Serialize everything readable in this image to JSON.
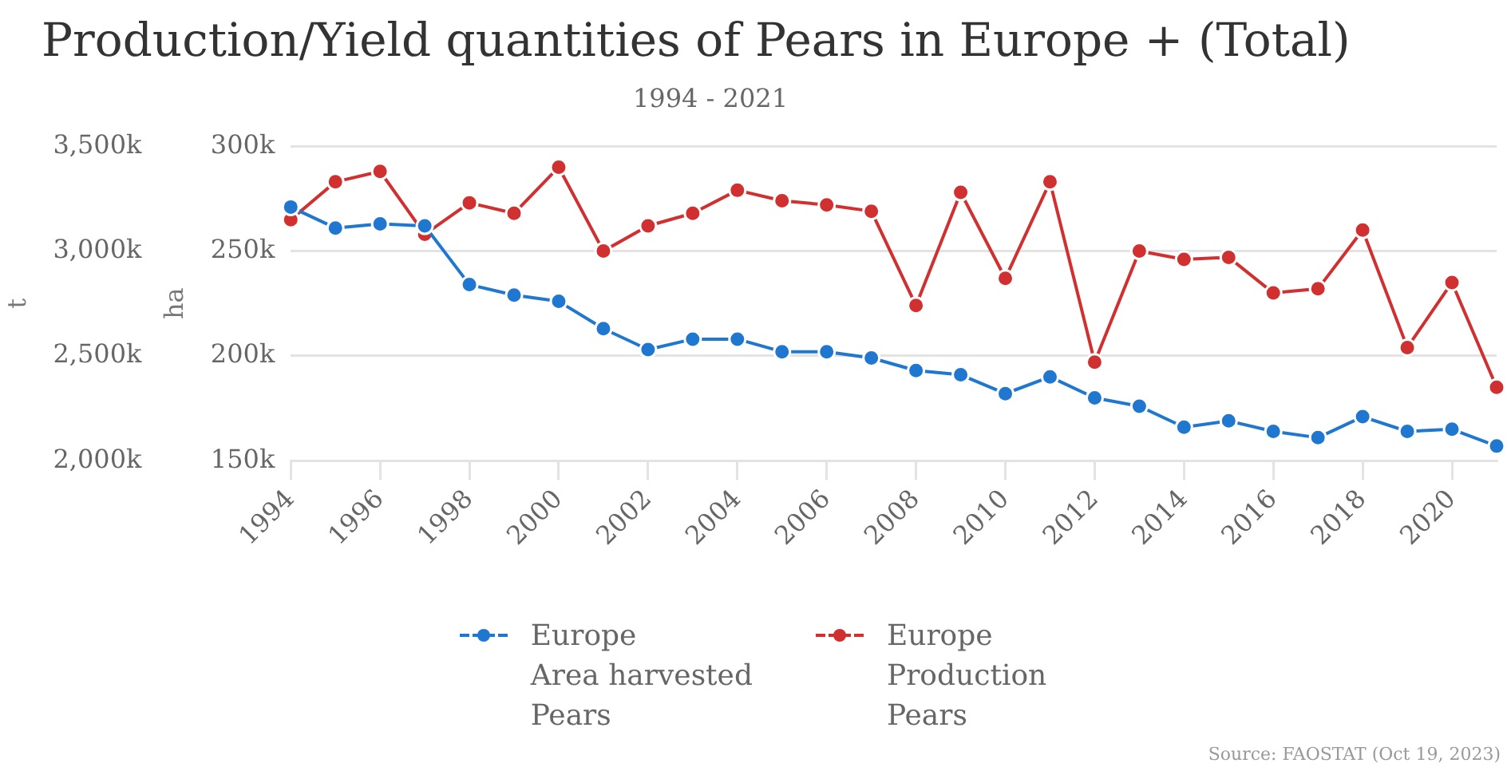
{
  "chart_data": {
    "type": "line",
    "title": "Production/Yield quantities of Pears in Europe + (Total)",
    "subtitle": "1994 - 2021",
    "ylabel": "t",
    "y2label": "ha",
    "x": [
      1994,
      1995,
      1996,
      1997,
      1998,
      1999,
      2000,
      2001,
      2002,
      2003,
      2004,
      2005,
      2006,
      2007,
      2008,
      2009,
      2010,
      2011,
      2012,
      2013,
      2014,
      2015,
      2016,
      2017,
      2018,
      2019,
      2020,
      2021
    ],
    "xlim": [
      1994,
      2021
    ],
    "xticks": [
      1994,
      1996,
      1998,
      2000,
      2002,
      2004,
      2006,
      2008,
      2010,
      2012,
      2014,
      2016,
      2018,
      2020
    ],
    "ylim": [
      2000000,
      3500000
    ],
    "yticks": [
      {
        "value": 2000000,
        "label": "2,000k"
      },
      {
        "value": 2500000,
        "label": "2,500k"
      },
      {
        "value": 3000000,
        "label": "3,000k"
      },
      {
        "value": 3500000,
        "label": "3,500k"
      }
    ],
    "y2lim": [
      150000,
      300000
    ],
    "y2ticks": [
      {
        "value": 150000,
        "label": "150k"
      },
      {
        "value": 200000,
        "label": "200k"
      },
      {
        "value": 250000,
        "label": "250k"
      },
      {
        "value": 300000,
        "label": "300k"
      }
    ],
    "series": [
      {
        "name": "Europe\nArea harvested\nPears",
        "color": "#1f77d0",
        "axis": "y2",
        "values": [
          271000,
          261000,
          263000,
          262000,
          234000,
          229000,
          226000,
          213000,
          203000,
          208000,
          208000,
          202000,
          202000,
          199000,
          193000,
          191000,
          182000,
          190000,
          180000,
          176000,
          166000,
          169000,
          164000,
          161000,
          171000,
          164000,
          165000,
          157000
        ]
      },
      {
        "name": "Europe\nProduction\nPears",
        "color": "#d03030",
        "values": [
          3150000,
          3330000,
          3380000,
          3080000,
          3230000,
          3180000,
          3400000,
          3000000,
          3120000,
          3180000,
          3290000,
          3240000,
          3220000,
          3190000,
          2740000,
          3280000,
          2870000,
          3330000,
          2470000,
          3000000,
          2960000,
          2970000,
          2800000,
          2820000,
          3100000,
          2540000,
          2850000,
          2350000
        ]
      }
    ],
    "grid": "y",
    "legend": "bottom",
    "marker": "circle",
    "line_style": "solid",
    "annotations": [
      "Source: FAOSTAT (Oct 19, 2023)"
    ]
  }
}
